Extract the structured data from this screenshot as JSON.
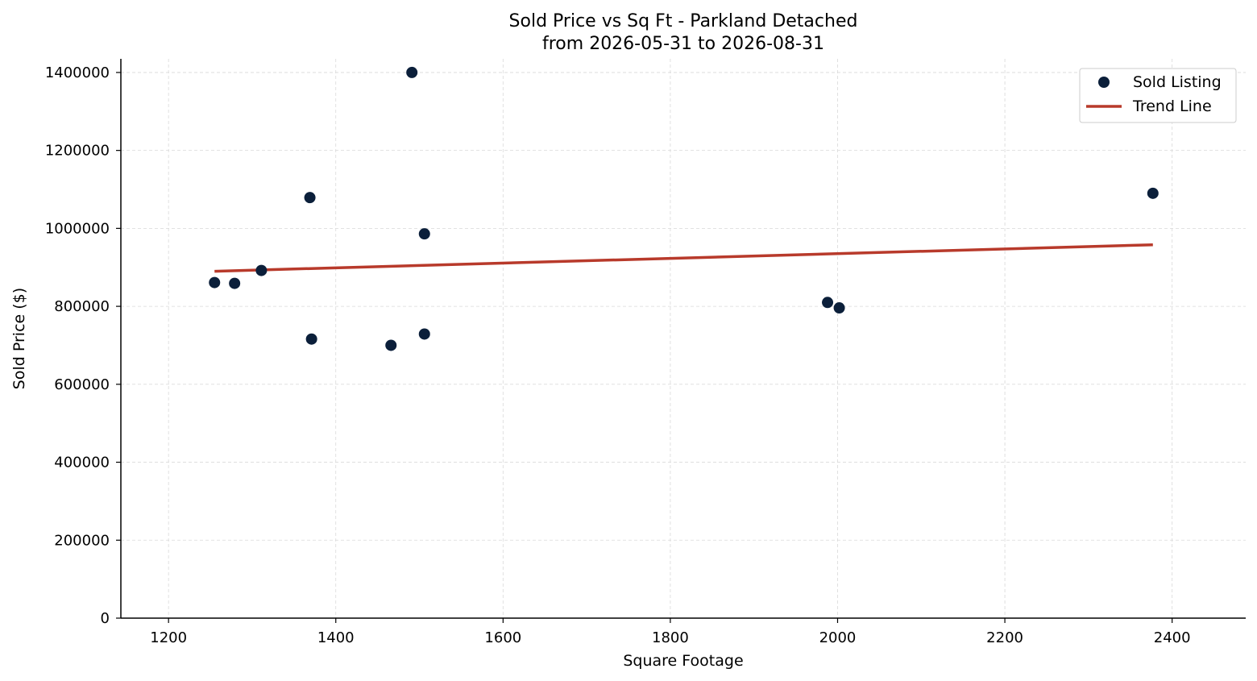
{
  "chart_data": {
    "type": "scatter",
    "title": "Sold Price vs Sq Ft - Parkland Detached",
    "subtitle": "from 2026-05-31 to 2026-08-31",
    "xlabel": "Square Footage",
    "ylabel": "Sold Price ($)",
    "xlim": [
      1143,
      2488
    ],
    "ylim": [
      0,
      1435000
    ],
    "x_ticks": [
      1200,
      1400,
      1600,
      1800,
      2000,
      2200,
      2400
    ],
    "y_ticks": [
      0,
      200000,
      400000,
      600000,
      800000,
      1000000,
      1200000,
      1400000
    ],
    "grid": true,
    "legend_position": "top-right",
    "series": [
      {
        "name": "Sold Listing",
        "kind": "scatter",
        "color": "#0b1f3a",
        "points": [
          {
            "x": 1255,
            "y": 861000
          },
          {
            "x": 1279,
            "y": 859000
          },
          {
            "x": 1311,
            "y": 892000
          },
          {
            "x": 1369,
            "y": 1079000
          },
          {
            "x": 1371,
            "y": 716000
          },
          {
            "x": 1466,
            "y": 700000
          },
          {
            "x": 1491,
            "y": 1400000
          },
          {
            "x": 1506,
            "y": 986000
          },
          {
            "x": 1506,
            "y": 729000
          },
          {
            "x": 1988,
            "y": 810000
          },
          {
            "x": 2002,
            "y": 796000
          },
          {
            "x": 2377,
            "y": 1090000
          }
        ]
      },
      {
        "name": "Trend Line",
        "kind": "line",
        "color": "#b83a2b",
        "points": [
          {
            "x": 1255,
            "y": 890000
          },
          {
            "x": 2377,
            "y": 958000
          }
        ]
      }
    ]
  }
}
